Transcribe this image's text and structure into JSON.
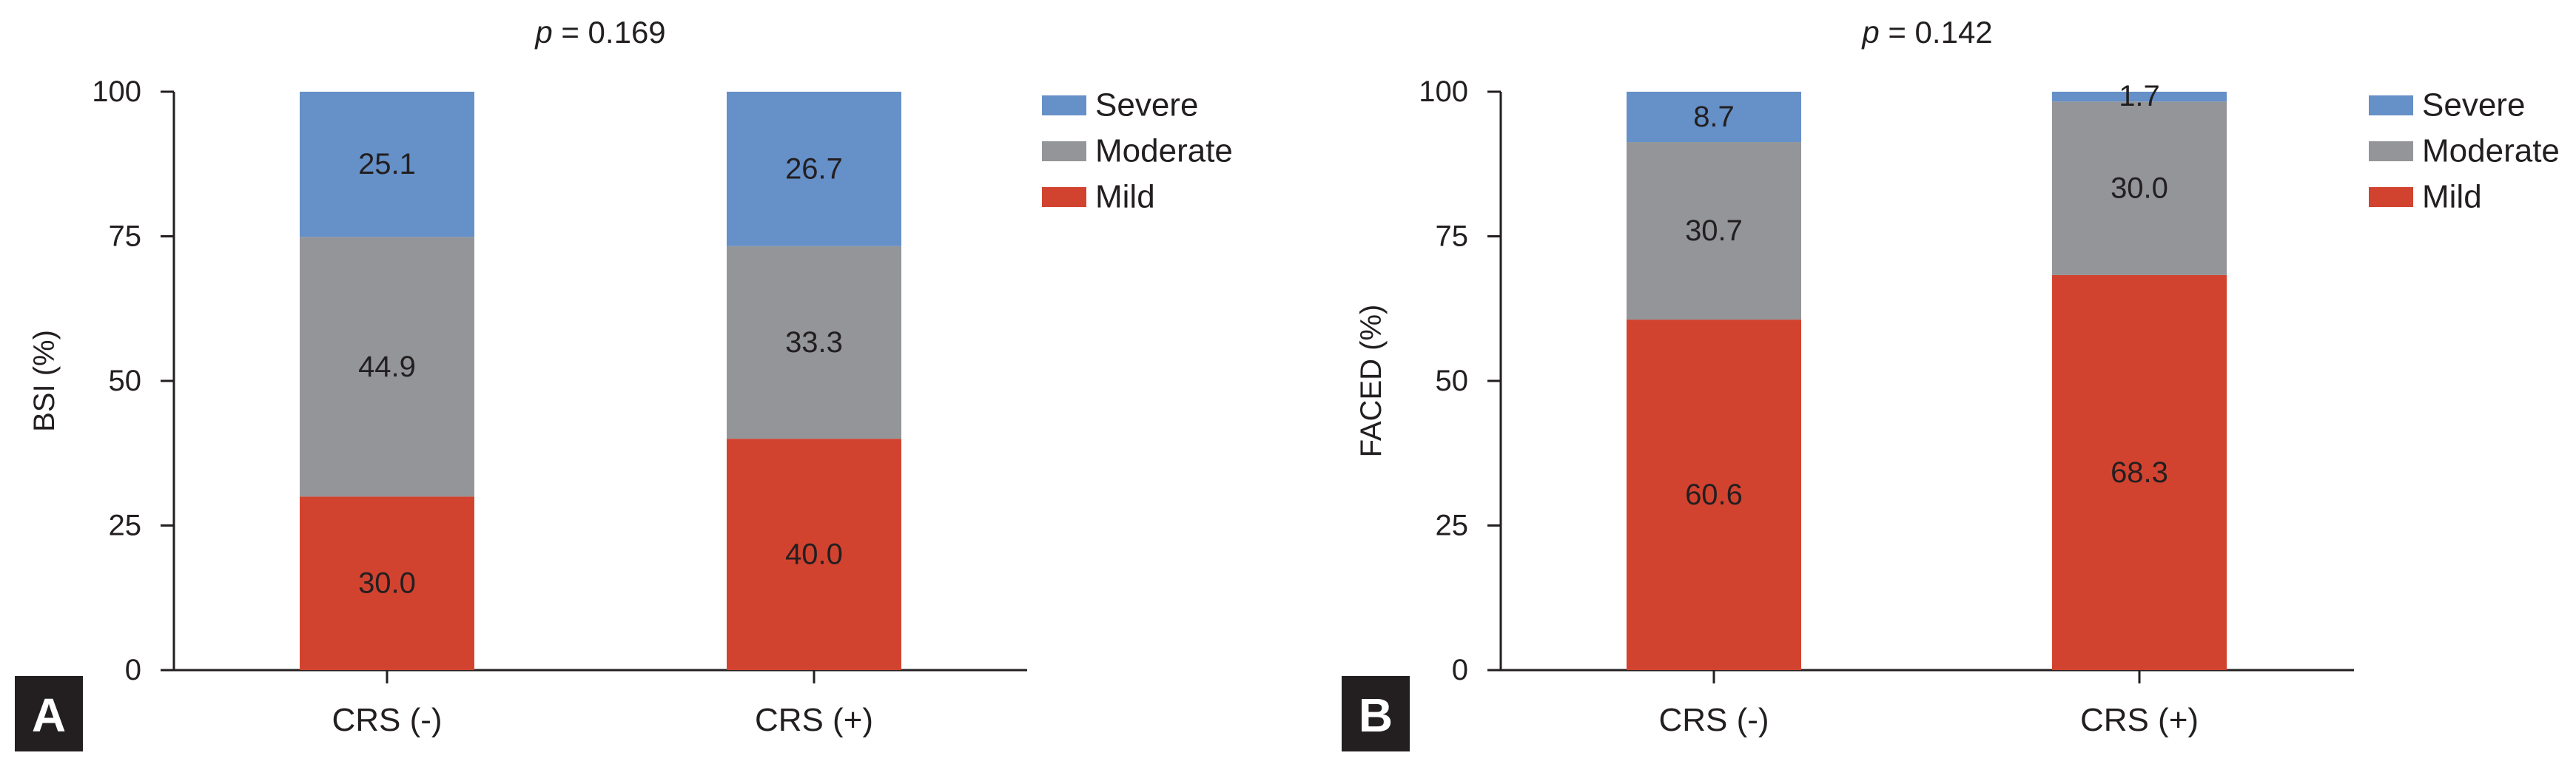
{
  "chart_data": [
    {
      "type": "bar",
      "stacked": true,
      "panel": "A",
      "title_italic": "p",
      "title_rest": " = 0.169",
      "ylabel": "BSI (%)",
      "xlabel": "",
      "ylim": [
        0,
        100
      ],
      "yticks": [
        0,
        25,
        50,
        75,
        100
      ],
      "categories": [
        "CRS (-)",
        "CRS (+)"
      ],
      "series": [
        {
          "name": "Mild",
          "color": "#d2432f",
          "values": [
            30.0,
            40.0
          ],
          "labels": [
            "30.0",
            "40.0"
          ]
        },
        {
          "name": "Moderate",
          "color": "#939598",
          "values": [
            44.9,
            33.3
          ],
          "labels": [
            "44.9",
            "33.3"
          ]
        },
        {
          "name": "Severe",
          "color": "#6590c8",
          "values": [
            25.1,
            26.7
          ],
          "labels": [
            "25.1",
            "26.7"
          ]
        }
      ],
      "legend": [
        "Severe",
        "Moderate",
        "Mild"
      ],
      "legend_position": "top-right"
    },
    {
      "type": "bar",
      "stacked": true,
      "panel": "B",
      "title_italic": "p",
      "title_rest": " = 0.142",
      "ylabel": "FACED (%)",
      "xlabel": "",
      "ylim": [
        0,
        100
      ],
      "yticks": [
        0,
        25,
        50,
        75,
        100
      ],
      "categories": [
        "CRS (-)",
        "CRS (+)"
      ],
      "series": [
        {
          "name": "Mild",
          "color": "#d2432f",
          "values": [
            60.6,
            68.3
          ],
          "labels": [
            "60.6",
            "68.3"
          ]
        },
        {
          "name": "Moderate",
          "color": "#939598",
          "values": [
            30.7,
            30.0
          ],
          "labels": [
            "30.7",
            "30.0"
          ]
        },
        {
          "name": "Severe",
          "color": "#6590c8",
          "values": [
            8.7,
            1.7
          ],
          "labels": [
            "8.7",
            "1.7"
          ]
        }
      ],
      "legend": [
        "Severe",
        "Moderate",
        "Mild"
      ],
      "legend_position": "top-right"
    }
  ]
}
